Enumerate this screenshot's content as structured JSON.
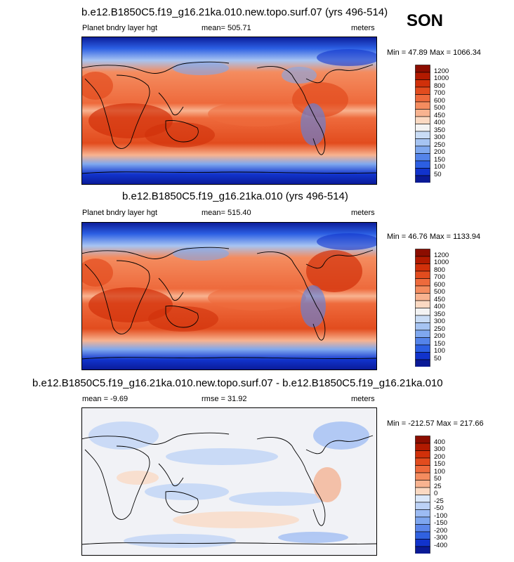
{
  "season": "SON",
  "panels": [
    {
      "title": "b.e12.B1850C5.f19_g16.21ka.010.new.topo.surf.07 (yrs 496-514)",
      "left_label": "Planet bndry layer hgt",
      "center_label": "mean= 505.71",
      "right_label": "meters",
      "minmax": "Min =  47.89 Max = 1066.34",
      "colorbar": {
        "labels": [
          "1200",
          "1000",
          "800",
          "700",
          "600",
          "500",
          "450",
          "400",
          "350",
          "300",
          "250",
          "200",
          "150",
          "100",
          "50"
        ],
        "colors": [
          "#8c0d00",
          "#b21a00",
          "#d1300a",
          "#e24c1e",
          "#ee6a3c",
          "#f48c5f",
          "#f8b390",
          "#fbd9c2",
          "#f3f3f3",
          "#c9dcf5",
          "#a6c4f2",
          "#7fa8ef",
          "#5484ea",
          "#2c5fe3",
          "#1133cc",
          "#0a1a96"
        ]
      }
    },
    {
      "title": "b.e12.B1850C5.f19_g16.21ka.010 (yrs 496-514)",
      "left_label": "Planet bndry layer hgt",
      "center_label": "mean= 515.40",
      "right_label": "meters",
      "minmax": "Min =  46.76 Max = 1133.94",
      "colorbar": {
        "labels": [
          "1200",
          "1000",
          "800",
          "700",
          "600",
          "500",
          "450",
          "400",
          "350",
          "300",
          "250",
          "200",
          "150",
          "100",
          "50"
        ],
        "colors": [
          "#8c0d00",
          "#b21a00",
          "#d1300a",
          "#e24c1e",
          "#ee6a3c",
          "#f48c5f",
          "#f8b390",
          "#fbd9c2",
          "#f3f3f3",
          "#c9dcf5",
          "#a6c4f2",
          "#7fa8ef",
          "#5484ea",
          "#2c5fe3",
          "#1133cc",
          "#0a1a96"
        ]
      }
    },
    {
      "title": "b.e12.B1850C5.f19_g16.21ka.010.new.topo.surf.07 - b.e12.B1850C5.f19_g16.21ka.010",
      "left_label": "mean =  -9.69",
      "center_label": "rmse =  31.92",
      "right_label": "meters",
      "minmax": "Min = -212.57 Max = 217.66",
      "colorbar": {
        "labels": [
          "400",
          "300",
          "200",
          "150",
          "100",
          "50",
          "25",
          "0",
          "-25",
          "-50",
          "-100",
          "-150",
          "-200",
          "-300",
          "-400"
        ],
        "colors": [
          "#8c0d00",
          "#b21a00",
          "#d1300a",
          "#e24c1e",
          "#ee6a3c",
          "#f48c5f",
          "#f8b390",
          "#fbd9c2",
          "#dbe8fa",
          "#bcd2f6",
          "#9cbbf3",
          "#7ea6ef",
          "#5b86ea",
          "#3061e0",
          "#1133cc",
          "#0a1a96"
        ]
      }
    }
  ]
}
